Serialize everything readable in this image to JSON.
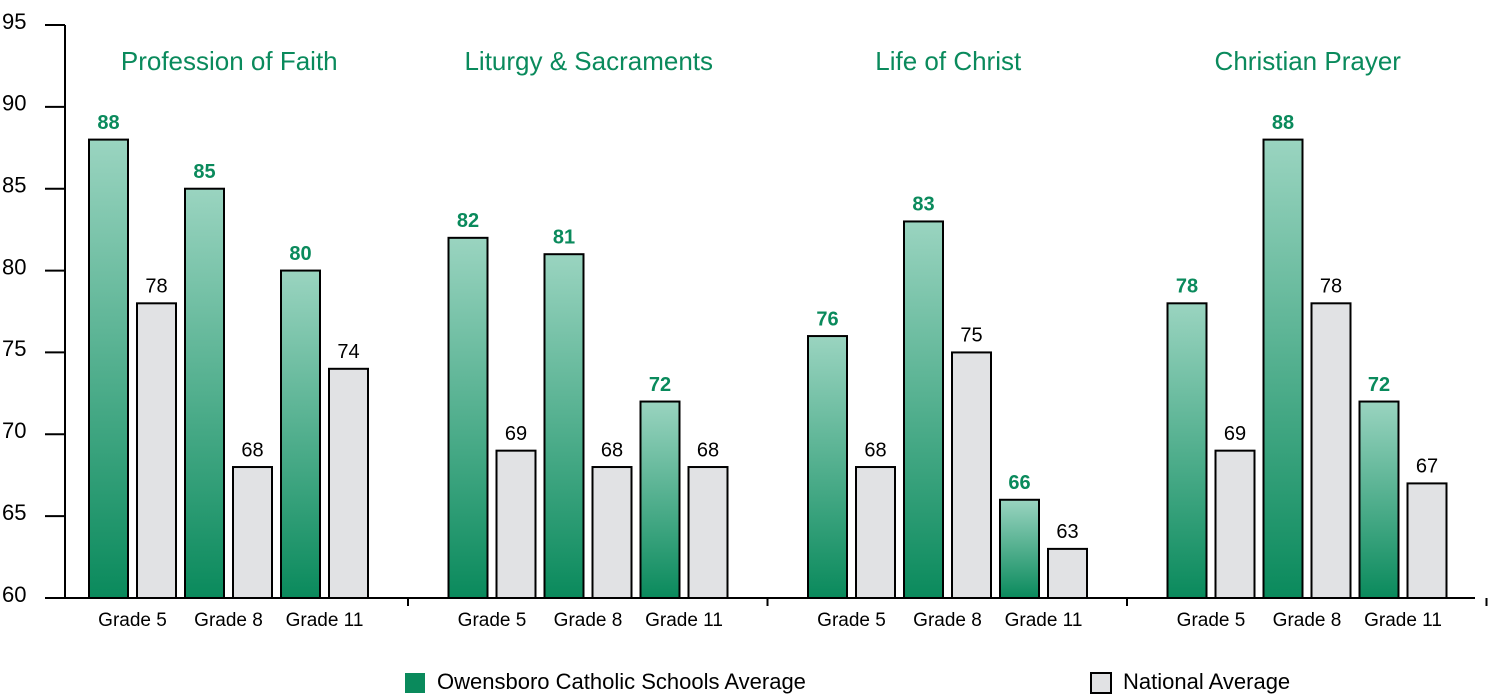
{
  "chart_data": {
    "type": "bar",
    "groups": [
      "Profession of Faith",
      "Liturgy & Sacraments",
      "Life of Christ",
      "Christian Prayer"
    ],
    "categories": [
      "Grade 5",
      "Grade 8",
      "Grade 11",
      "Grade 5",
      "Grade 8",
      "Grade 11",
      "Grade 5",
      "Grade 8",
      "Grade 11",
      "Grade 5",
      "Grade 8",
      "Grade 11"
    ],
    "series": [
      {
        "name": "Owensboro Catholic Schools Average",
        "color": "#0a8a5c",
        "values": [
          88,
          85,
          80,
          82,
          81,
          72,
          76,
          83,
          66,
          78,
          88,
          72
        ]
      },
      {
        "name": "National Average",
        "color": "#e1e2e4",
        "values": [
          78,
          68,
          74,
          69,
          68,
          68,
          68,
          75,
          63,
          69,
          78,
          67
        ]
      }
    ],
    "ylim": [
      60,
      95
    ],
    "yticks": [
      60,
      65,
      70,
      75,
      80,
      85,
      90,
      95
    ]
  }
}
